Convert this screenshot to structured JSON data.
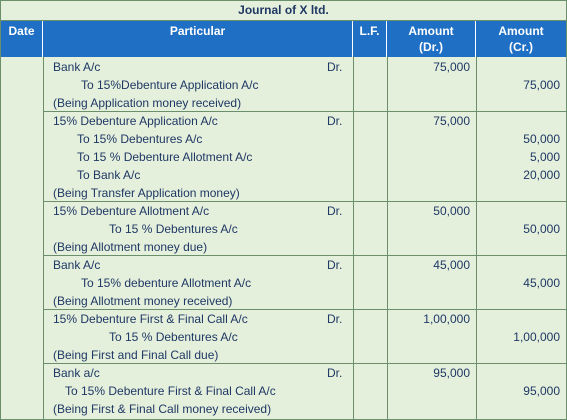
{
  "title": "Journal of X ltd.",
  "headers": {
    "date": "Date",
    "particular": "Particular",
    "lf": "L.F.",
    "amount_dr": [
      "Amount",
      "(Dr.)"
    ],
    "amount_cr": [
      "Amount",
      "(Cr.)"
    ]
  },
  "entries": [
    {
      "lines": [
        {
          "text": "Bank A/c",
          "dr_marker": "Dr.",
          "debit": "75,000",
          "credit": ""
        },
        {
          "text": "To 15%Debenture Application A/c",
          "dr_marker": "",
          "debit": "",
          "credit": "75,000"
        },
        {
          "text": "(Being Application money received)",
          "dr_marker": "",
          "debit": "",
          "credit": ""
        }
      ]
    },
    {
      "lines": [
        {
          "text": "15% Debenture Application A/c",
          "dr_marker": "Dr.",
          "debit": "75,000",
          "credit": ""
        },
        {
          "text": "To 15% Debentures A/c",
          "dr_marker": "",
          "debit": "",
          "credit": "50,000"
        },
        {
          "text": "To 15 % Debenture Allotment A/c",
          "dr_marker": "",
          "debit": "",
          "credit": "5,000"
        },
        {
          "text": "To Bank A/c",
          "dr_marker": "",
          "debit": "",
          "credit": "20,000"
        },
        {
          "text": "(Being Transfer Application money)",
          "dr_marker": "",
          "debit": "",
          "credit": ""
        }
      ]
    },
    {
      "lines": [
        {
          "text": "15% Debenture Allotment A/c",
          "dr_marker": "Dr.",
          "debit": "50,000",
          "credit": ""
        },
        {
          "text": "To 15 % Debentures A/c",
          "dr_marker": "",
          "debit": "",
          "credit": "50,000"
        },
        {
          "text": "(Being Allotment money due)",
          "dr_marker": "",
          "debit": "",
          "credit": ""
        }
      ]
    },
    {
      "lines": [
        {
          "text": "Bank A/c",
          "dr_marker": "Dr.",
          "debit": "45,000",
          "credit": ""
        },
        {
          "text": "To 15% debenture Allotment A/c",
          "dr_marker": "",
          "debit": "",
          "credit": "45,000"
        },
        {
          "text": "(Being Allotment money received)",
          "dr_marker": "",
          "debit": "",
          "credit": ""
        }
      ]
    },
    {
      "lines": [
        {
          "text": "15% Debenture First & Final Call A/c",
          "dr_marker": "Dr.",
          "debit": "1,00,000",
          "credit": ""
        },
        {
          "text": "To 15 % Debentures A/c",
          "dr_marker": "",
          "debit": "",
          "credit": "1,00,000"
        },
        {
          "text": "(Being First and Final Call due)",
          "dr_marker": "",
          "debit": "",
          "credit": ""
        }
      ]
    },
    {
      "lines": [
        {
          "text": "Bank a/c",
          "dr_marker": "Dr.",
          "debit": "95,000",
          "credit": ""
        },
        {
          "text": "To 15% Debenture First & Final Call A/c",
          "dr_marker": "",
          "debit": "",
          "credit": "95,000"
        },
        {
          "text": "(Being First & Final Call money received)",
          "dr_marker": "",
          "debit": "",
          "credit": ""
        }
      ]
    }
  ]
}
